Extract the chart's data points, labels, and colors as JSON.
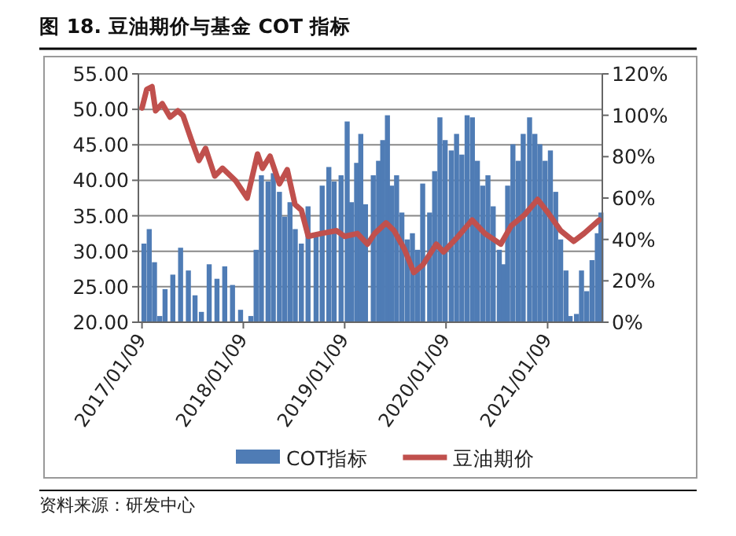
{
  "chart_data": {
    "type": "bar",
    "title": "图 18. 豆油期价与基金 COT 指标",
    "xlim": [
      "2016-12-27",
      "2021-07-25"
    ],
    "xticks": [
      {
        "value": "2017-01-09",
        "label": "2017/01/09"
      },
      {
        "value": "2018-01-09",
        "label": "2018/01/09"
      },
      {
        "value": "2019-01-09",
        "label": "2019/01/09"
      },
      {
        "value": "2020-01-09",
        "label": "2020/01/09"
      },
      {
        "value": "2021-01-09",
        "label": "2021/01/09"
      }
    ],
    "ylim": [
      20,
      55
    ],
    "yticks": [
      {
        "value": 20,
        "label": "20.00"
      },
      {
        "value": 25,
        "label": "25.00"
      },
      {
        "value": 30,
        "label": "30.00"
      },
      {
        "value": 35,
        "label": "35.00"
      },
      {
        "value": 40,
        "label": "40.00"
      },
      {
        "value": 45,
        "label": "45.00"
      },
      {
        "value": 50,
        "label": "50.00"
      },
      {
        "value": 55,
        "label": "55.00"
      }
    ],
    "y2lim": [
      0,
      120
    ],
    "y2ticks": [
      {
        "value": 0,
        "label": "0%"
      },
      {
        "value": 20,
        "label": "20%"
      },
      {
        "value": 40,
        "label": "40%"
      },
      {
        "value": 60,
        "label": "60%"
      },
      {
        "value": 80,
        "label": "80%"
      },
      {
        "value": 100,
        "label": "100%"
      },
      {
        "value": 120,
        "label": "120%"
      }
    ],
    "grid": "y",
    "legend": "bottom",
    "series": [
      {
        "name": "COT指标",
        "axis": "y2",
        "color": "#4f7cb5",
        "x": [
          "2017-01-16",
          "2017-02-04",
          "2017-02-23",
          "2017-03-14",
          "2017-04-02",
          "2017-04-30",
          "2017-05-28",
          "2017-06-25",
          "2017-07-19",
          "2017-08-11",
          "2017-09-08",
          "2017-10-06",
          "2017-11-03",
          "2017-12-01",
          "2017-12-30",
          "2018-01-17",
          "2018-02-05",
          "2018-02-24",
          "2018-03-15",
          "2018-04-08",
          "2018-04-27",
          "2018-05-19",
          "2018-06-07",
          "2018-06-26",
          "2018-07-15",
          "2018-08-06",
          "2018-08-30",
          "2018-09-28",
          "2018-10-20",
          "2018-11-13",
          "2018-12-02",
          "2018-12-27",
          "2019-01-18",
          "2019-02-02",
          "2019-02-21",
          "2019-03-08",
          "2019-03-25",
          "2019-04-22",
          "2019-05-11",
          "2019-05-26",
          "2019-06-12",
          "2019-06-27",
          "2019-07-15",
          "2019-08-03",
          "2019-08-22",
          "2019-09-10",
          "2019-09-28",
          "2019-10-17",
          "2019-11-11",
          "2019-11-29",
          "2019-12-18",
          "2020-01-06",
          "2020-01-28",
          "2020-02-16",
          "2020-03-06",
          "2020-03-25",
          "2020-04-13",
          "2020-05-01",
          "2020-05-20",
          "2020-06-08",
          "2020-06-27",
          "2020-07-19",
          "2020-08-03",
          "2020-08-18",
          "2020-09-06",
          "2020-09-25",
          "2020-10-13",
          "2020-11-05",
          "2020-11-24",
          "2020-12-12",
          "2020-12-31",
          "2021-01-19",
          "2021-02-07",
          "2021-02-25",
          "2021-03-16",
          "2021-03-31",
          "2021-04-23",
          "2021-05-11",
          "2021-05-30",
          "2021-06-18",
          "2021-07-07",
          "2021-07-20"
        ],
        "values": [
          38,
          45,
          29,
          3,
          16,
          23,
          36,
          25,
          13,
          5,
          28,
          21,
          27,
          18,
          6,
          0,
          3,
          35,
          71,
          68,
          72,
          63,
          51,
          58,
          45,
          38,
          56,
          43,
          66,
          75,
          68,
          71,
          97,
          58,
          77,
          91,
          57,
          71,
          78,
          88,
          100,
          66,
          71,
          53,
          40,
          43,
          35,
          67,
          53,
          73,
          99,
          88,
          83,
          91,
          81,
          100,
          99,
          78,
          66,
          71,
          56,
          35,
          28,
          66,
          86,
          78,
          91,
          99,
          91,
          86,
          78,
          83,
          63,
          40,
          25,
          3,
          4,
          25,
          15,
          30,
          43,
          53
        ]
      },
      {
        "name": "豆油期价",
        "type": "line",
        "axis": "y",
        "color": "#c0504d",
        "x": [
          "2017-01-09",
          "2017-01-26",
          "2017-02-14",
          "2017-02-27",
          "2017-03-23",
          "2017-04-20",
          "2017-05-18",
          "2017-06-06",
          "2017-07-05",
          "2017-08-02",
          "2017-08-26",
          "2017-09-28",
          "2017-10-26",
          "2017-12-13",
          "2018-01-23",
          "2018-03-01",
          "2018-03-19",
          "2018-04-15",
          "2018-05-19",
          "2018-06-16",
          "2018-07-14",
          "2018-08-06",
          "2018-08-31",
          "2018-10-16",
          "2018-12-11",
          "2019-01-09",
          "2019-02-24",
          "2019-04-01",
          "2019-04-27",
          "2019-06-07",
          "2019-07-06",
          "2019-08-12",
          "2019-09-15",
          "2019-10-18",
          "2019-12-05",
          "2019-12-31",
          "2020-02-15",
          "2020-04-12",
          "2020-05-28",
          "2020-07-24",
          "2020-08-31",
          "2020-10-17",
          "2020-12-04",
          "2021-01-09",
          "2021-02-25",
          "2021-04-13",
          "2021-05-20",
          "2021-07-14"
        ],
        "values": [
          50.2,
          52.8,
          53.2,
          49.8,
          50.8,
          48.9,
          49.8,
          49.1,
          45.8,
          42.8,
          44.5,
          40.6,
          41.7,
          39.9,
          37.5,
          43.7,
          41.7,
          43.4,
          39.5,
          41.5,
          36.6,
          35.8,
          32.1,
          32.5,
          32.9,
          32.1,
          32.5,
          31.0,
          32.5,
          34.0,
          32.9,
          30.3,
          27.0,
          28.1,
          31.0,
          29.9,
          31.8,
          34.4,
          32.5,
          31.0,
          33.6,
          35.1,
          37.3,
          35.5,
          32.9,
          31.4,
          32.5,
          34.4
        ]
      }
    ],
    "annotations": [
      "资料来源：研发中心"
    ]
  }
}
